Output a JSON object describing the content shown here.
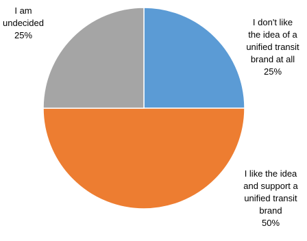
{
  "chart_data": {
    "type": "pie",
    "slices": [
      {
        "lines": [
          "I don't like",
          "the idea of a",
          "unified transit",
          "brand at all"
        ],
        "value": 25,
        "percent_label": "25%",
        "color": "#5b9bd5"
      },
      {
        "lines": [
          "I like the idea",
          "and support a",
          "unified transit",
          "brand"
        ],
        "value": 50,
        "percent_label": "50%",
        "color": "#ed7d31"
      },
      {
        "lines": [
          "I am",
          "undecided"
        ],
        "value": 25,
        "percent_label": "25%",
        "color": "#a5a5a5"
      }
    ],
    "start_angle": "12 o'clock",
    "direction": "clockwise",
    "legend": "none"
  }
}
